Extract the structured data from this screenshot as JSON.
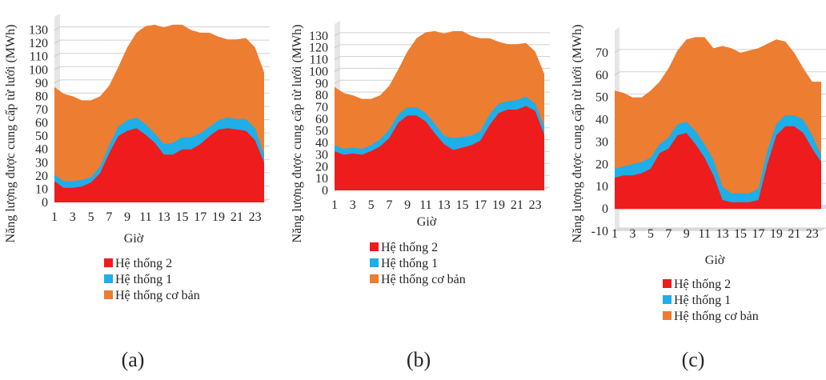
{
  "chart_data": [
    {
      "type": "area",
      "stacked": true,
      "panel_label": "(a)",
      "title": "",
      "xlabel": "Giờ",
      "ylabel": "Năng lượng được cung cấp từ lưới (MWh)",
      "ylim": [
        0,
        140
      ],
      "yticks": [
        0,
        10,
        20,
        30,
        40,
        50,
        60,
        70,
        80,
        90,
        100,
        110,
        120,
        130
      ],
      "x": [
        1,
        2,
        3,
        4,
        5,
        6,
        7,
        8,
        9,
        10,
        11,
        12,
        13,
        14,
        15,
        16,
        17,
        18,
        19,
        20,
        21,
        22,
        23,
        24
      ],
      "xtick_labels": [
        "1",
        "3",
        "5",
        "7",
        "9",
        "11",
        "13",
        "15",
        "17",
        "19",
        "21",
        "23"
      ],
      "grid": true,
      "legend_position": "bottom",
      "series": [
        {
          "name": "Hệ thống 2",
          "color": "#ee1c1c",
          "values": [
            16,
            11,
            11,
            12,
            15,
            22,
            37,
            50,
            54,
            56,
            51,
            45,
            36,
            36,
            40,
            40,
            44,
            50,
            55,
            56,
            55,
            54,
            47,
            30
          ]
        },
        {
          "name": "Hệ thống 1",
          "color": "#1eaee8",
          "values": [
            21,
            16,
            16,
            17,
            19,
            27,
            43,
            57,
            62,
            64,
            59,
            52,
            44,
            45,
            49,
            49,
            52,
            57,
            62,
            64,
            63,
            63,
            56,
            36
          ]
        },
        {
          "name": "Hệ thống cơ bản",
          "color": "#ed7d31",
          "values": [
            87,
            82,
            80,
            77,
            77,
            80,
            88,
            102,
            117,
            128,
            133,
            134,
            132,
            134,
            134,
            130,
            128,
            128,
            125,
            123,
            123,
            124,
            117,
            98
          ]
        }
      ]
    },
    {
      "type": "area",
      "stacked": true,
      "panel_label": "(b)",
      "title": "",
      "xlabel": "Giờ",
      "ylabel": "Năng lượng được cung cấp từ lưới (MWh)",
      "ylim": [
        0,
        140
      ],
      "yticks": [
        0,
        10,
        20,
        30,
        40,
        50,
        60,
        70,
        80,
        90,
        100,
        110,
        120,
        130
      ],
      "x": [
        1,
        2,
        3,
        4,
        5,
        6,
        7,
        8,
        9,
        10,
        11,
        12,
        13,
        14,
        15,
        16,
        17,
        18,
        19,
        20,
        21,
        22,
        23,
        24
      ],
      "xtick_labels": [
        "1",
        "3",
        "5",
        "7",
        "9",
        "11",
        "13",
        "15",
        "17",
        "19",
        "21",
        "23"
      ],
      "grid": true,
      "legend_position": "bottom",
      "series": [
        {
          "name": "Hệ thống 2",
          "color": "#ee1c1c",
          "values": [
            33,
            30,
            31,
            30,
            33,
            37,
            44,
            57,
            63,
            63,
            58,
            48,
            39,
            34,
            36,
            38,
            42,
            55,
            65,
            68,
            68,
            71,
            67,
            47
          ]
        },
        {
          "name": "Hệ thống 1",
          "color": "#1eaee8",
          "values": [
            38,
            35,
            36,
            35,
            38,
            43,
            51,
            64,
            70,
            70,
            65,
            56,
            46,
            44,
            45,
            46,
            50,
            64,
            73,
            75,
            76,
            79,
            73,
            54
          ]
        },
        {
          "name": "Hệ thống cơ bản",
          "color": "#ed7d31",
          "values": [
            87,
            82,
            80,
            77,
            77,
            80,
            88,
            102,
            117,
            128,
            133,
            134,
            132,
            134,
            134,
            130,
            128,
            128,
            125,
            123,
            123,
            124,
            117,
            98
          ]
        }
      ]
    },
    {
      "type": "area",
      "stacked": true,
      "panel_label": "(c)",
      "title": "",
      "xlabel": "Giờ",
      "ylabel": "Năng lượng được cung cấp từ lưới (MWh)",
      "ylim": [
        -10,
        80
      ],
      "yticks": [
        -10,
        0,
        10,
        20,
        30,
        40,
        50,
        60,
        70
      ],
      "x": [
        1,
        2,
        3,
        4,
        5,
        6,
        7,
        8,
        9,
        10,
        11,
        12,
        13,
        14,
        15,
        16,
        17,
        18,
        19,
        20,
        21,
        22,
        23,
        24
      ],
      "xtick_labels": [
        "1",
        "3",
        "5",
        "7",
        "9",
        "11",
        "13",
        "15",
        "17",
        "19",
        "21",
        "23"
      ],
      "grid": true,
      "legend_position": "bottom",
      "series": [
        {
          "name": "Hệ thống 2",
          "color": "#ee1c1c",
          "values": [
            14,
            15,
            15,
            16,
            18,
            25,
            27,
            33,
            34,
            29,
            23,
            15,
            4,
            3,
            3,
            3,
            4,
            20,
            33,
            37,
            37,
            34,
            27,
            21
          ]
        },
        {
          "name": "Hệ thống 1",
          "color": "#1eaee8",
          "values": [
            18,
            19,
            20,
            21,
            23,
            29,
            32,
            38,
            39,
            35,
            29,
            22,
            10,
            7,
            7,
            7,
            9,
            26,
            38,
            42,
            42,
            40,
            33,
            24
          ]
        },
        {
          "name": "Hệ thống cơ bản",
          "color": "#ed7d31",
          "values": [
            53,
            52,
            50,
            50,
            53,
            57,
            63,
            71,
            76,
            77,
            77,
            72,
            73,
            72,
            70,
            71,
            72,
            74,
            76,
            75,
            70,
            63,
            57,
            57
          ]
        }
      ]
    }
  ]
}
